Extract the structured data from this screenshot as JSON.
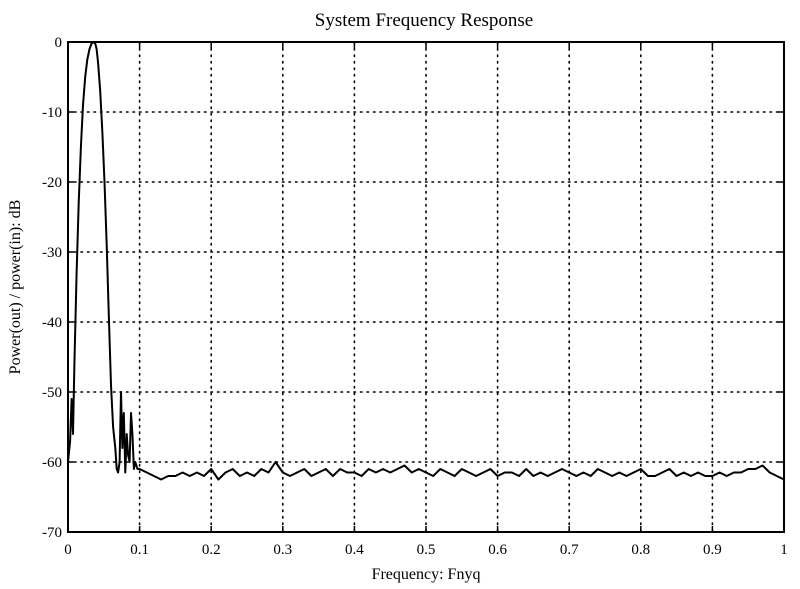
{
  "chart_data": {
    "type": "line",
    "title": "System Frequency Response",
    "xlabel": "Frequency: Fnyq",
    "ylabel": "Power(out) / power(in): dB",
    "xlim": [
      0,
      1
    ],
    "ylim": [
      -70,
      0
    ],
    "grid": true,
    "xticks": [
      0,
      0.1,
      0.2,
      0.3,
      0.4,
      0.5,
      0.6,
      0.7,
      0.8,
      0.9,
      1
    ],
    "xtick_labels": [
      "0",
      "0.1",
      "0.2",
      "0.3",
      "0.4",
      "0.5",
      "0.6",
      "0.7",
      "0.8",
      "0.9",
      "1"
    ],
    "yticks": [
      0,
      -10,
      -20,
      -30,
      -40,
      -50,
      -60,
      -70
    ],
    "ytick_labels": [
      "0",
      "-10",
      "-20",
      "-30",
      "-40",
      "-50",
      "-60",
      "-70"
    ],
    "series": [
      {
        "color": "#000000",
        "x": [
          0,
          0.003,
          0.005,
          0.007,
          0.009,
          0.012,
          0.015,
          0.018,
          0.021,
          0.024,
          0.027,
          0.03,
          0.033,
          0.036,
          0.038,
          0.04,
          0.042,
          0.045,
          0.048,
          0.051,
          0.054,
          0.057,
          0.06,
          0.063,
          0.066,
          0.068,
          0.07,
          0.072,
          0.074,
          0.076,
          0.078,
          0.08,
          0.082,
          0.084,
          0.086,
          0.088,
          0.09,
          0.092,
          0.094,
          0.097,
          0.1,
          0.11,
          0.12,
          0.13,
          0.14,
          0.15,
          0.16,
          0.17,
          0.18,
          0.19,
          0.2,
          0.21,
          0.22,
          0.23,
          0.24,
          0.25,
          0.26,
          0.27,
          0.28,
          0.29,
          0.3,
          0.31,
          0.32,
          0.33,
          0.34,
          0.35,
          0.36,
          0.37,
          0.38,
          0.39,
          0.4,
          0.41,
          0.42,
          0.43,
          0.44,
          0.45,
          0.46,
          0.47,
          0.48,
          0.49,
          0.5,
          0.51,
          0.52,
          0.53,
          0.54,
          0.55,
          0.56,
          0.57,
          0.58,
          0.59,
          0.6,
          0.61,
          0.62,
          0.63,
          0.64,
          0.65,
          0.66,
          0.67,
          0.68,
          0.69,
          0.7,
          0.71,
          0.72,
          0.73,
          0.74,
          0.75,
          0.76,
          0.77,
          0.78,
          0.79,
          0.8,
          0.81,
          0.82,
          0.83,
          0.84,
          0.85,
          0.86,
          0.87,
          0.88,
          0.89,
          0.9,
          0.91,
          0.92,
          0.93,
          0.94,
          0.95,
          0.96,
          0.97,
          0.98,
          0.99,
          1
        ],
        "y": [
          -60,
          -57,
          -51,
          -56,
          -46,
          -33,
          -23,
          -15,
          -9,
          -5,
          -2.5,
          -1,
          -0.2,
          0,
          -0.2,
          -1,
          -3,
          -7,
          -13,
          -20,
          -29,
          -39,
          -49,
          -55,
          -58,
          -61,
          -61.5,
          -60,
          -50,
          -58,
          -53,
          -61.5,
          -56,
          -59,
          -60,
          -53,
          -56,
          -61,
          -60,
          -61,
          -61,
          -61.5,
          -62,
          -62.5,
          -62,
          -62,
          -61.5,
          -62,
          -61.5,
          -62,
          -61,
          -62.5,
          -61.5,
          -61,
          -62,
          -61.5,
          -62,
          -61,
          -61.5,
          -60,
          -61.5,
          -62,
          -61.5,
          -61,
          -62,
          -61.5,
          -61,
          -62,
          -61,
          -61.5,
          -61.5,
          -62,
          -61,
          -61.5,
          -61,
          -61.5,
          -61,
          -60.5,
          -61.5,
          -61,
          -61.5,
          -62,
          -61,
          -61.5,
          -62,
          -61,
          -61.5,
          -62,
          -61.5,
          -61,
          -62,
          -61.5,
          -61.5,
          -62,
          -61,
          -62,
          -61.5,
          -62,
          -61.5,
          -61,
          -61.5,
          -62,
          -61.5,
          -62,
          -61,
          -61.5,
          -62,
          -61.5,
          -62,
          -61.5,
          -61,
          -62,
          -62,
          -61.5,
          -61,
          -62,
          -61.5,
          -62,
          -61.5,
          -62,
          -62,
          -61.5,
          -62,
          -61.5,
          -61.5,
          -61,
          -61,
          -60.5,
          -61.5,
          -62,
          -62.5
        ]
      }
    ]
  }
}
